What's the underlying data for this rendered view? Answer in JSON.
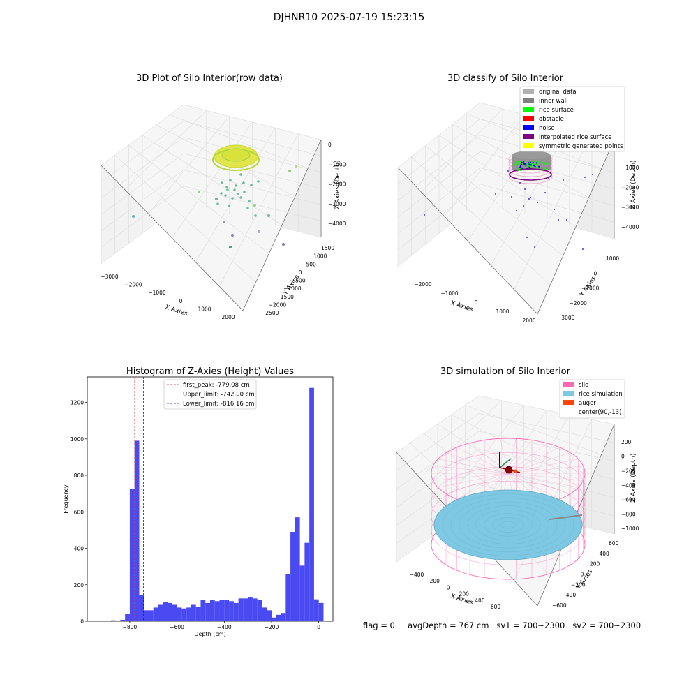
{
  "figure": {
    "suptitle": "DJHNR10 2025-07-19 15:23:15"
  },
  "status": {
    "flag": "flag = 0",
    "avg_depth": "avgDepth = 767 cm",
    "sv1": "sv1 = 700~2300",
    "sv2": "sv2 = 700~2300"
  },
  "colors": {
    "histogram_bar": "#4a4af2",
    "first_peak_line": "#dd2222",
    "limit_lines": "#1a1aa6",
    "classify_original": "#b0b0b0",
    "classify_inner_wall": "#808080",
    "classify_rice_surface": "#00ff00",
    "classify_obstacle": "#ff0000",
    "classify_noise": "#0000ff",
    "classify_interpolated": "#800080",
    "classify_symmetric": "#ffff00",
    "sim_silo": "#ff69b4",
    "sim_rice": "#7ec8e3",
    "sim_auger": "#ff4500"
  },
  "chart_data": [
    {
      "type": "scatter",
      "title": "3D Plot of Silo Interior(row data)",
      "xlabel": "X Axies",
      "ylabel": "Y Axies",
      "zlabel": "Z Axies (Depth)",
      "x_ticks": [
        "−3000",
        "−2000",
        "−1000",
        "0",
        "1000",
        "2000"
      ],
      "y_ticks": [
        "1500",
        "1000",
        "500",
        "0",
        "−500",
        "−1000",
        "−1500",
        "−2000",
        "−2500"
      ],
      "z_ticks": [
        "0",
        "−1000",
        "−2000",
        "−3000",
        "−4000"
      ],
      "xlim": [
        -3000,
        2000
      ],
      "ylim": [
        -2500,
        1500
      ],
      "zlim": [
        -4500,
        0
      ],
      "grid": true
    },
    {
      "type": "scatter",
      "title": "3D classify of Silo Interior",
      "xlabel": "X Axies",
      "ylabel": "Y Axies",
      "zlabel": "Z Axies (Depth)",
      "x_ticks": [
        "−2000",
        "−1000",
        "0",
        "1000",
        "2000"
      ],
      "y_ticks": [
        "1000",
        "0",
        "−1000",
        "−2000",
        "−3000"
      ],
      "z_ticks": [
        "−1000",
        "−2000",
        "−3000",
        "−4000"
      ],
      "legend_position": "top-right",
      "legend": [
        {
          "label": "original data",
          "color": "#b0b0b0"
        },
        {
          "label": "inner wall",
          "color": "#808080"
        },
        {
          "label": "rice surface",
          "color": "#00ff00"
        },
        {
          "label": "obstacle",
          "color": "#ff0000"
        },
        {
          "label": "noise",
          "color": "#0000ff"
        },
        {
          "label": "interpolated rice surface",
          "color": "#800080"
        },
        {
          "label": "symmetric generated points",
          "color": "#ffff00"
        }
      ],
      "grid": true
    },
    {
      "type": "bar",
      "title": "Histogram of Z-Axies (Height) Values",
      "xlabel": "Depth (cm)",
      "ylabel": "Frequency",
      "xlim": [
        -980,
        60
      ],
      "ylim": [
        0,
        1340
      ],
      "x_ticks": [
        "−800",
        "−600",
        "−400",
        "−200",
        "0"
      ],
      "y_ticks": [
        "0",
        "200",
        "400",
        "600",
        "800",
        "1000",
        "1200"
      ],
      "bin_width": 20,
      "bin_starts": [
        -880,
        -860,
        -840,
        -820,
        -800,
        -780,
        -760,
        -740,
        -720,
        -700,
        -680,
        -660,
        -640,
        -620,
        -600,
        -580,
        -560,
        -540,
        -520,
        -500,
        -480,
        -460,
        -440,
        -420,
        -400,
        -380,
        -360,
        -340,
        -320,
        -300,
        -280,
        -260,
        -240,
        -220,
        -200,
        -180,
        -160,
        -140,
        -120,
        -100,
        -80,
        -60,
        -40,
        -20,
        0
      ],
      "values": [
        5,
        0,
        8,
        40,
        725,
        990,
        145,
        60,
        60,
        75,
        90,
        105,
        100,
        90,
        75,
        70,
        75,
        90,
        80,
        115,
        100,
        115,
        110,
        115,
        115,
        110,
        100,
        125,
        125,
        130,
        125,
        115,
        75,
        60,
        20,
        35,
        45,
        260,
        490,
        570,
        305,
        430,
        1280,
        120,
        100
      ],
      "lines": [
        {
          "label": "first_peak: -779.08 cm",
          "x": -779.08,
          "color": "#dd2222"
        },
        {
          "label": "Upper_limit: -742.00 cm",
          "x": -742.0,
          "color": "#1a1aa6"
        },
        {
          "label": "Lower_limit: -816.16 cm",
          "x": -816.16,
          "color": "#1a1aa6"
        }
      ],
      "legend_position": "top-center",
      "grid": false
    },
    {
      "type": "scatter",
      "title": "3D simulation of Silo Interior",
      "xlabel": "X Axies",
      "ylabel": "Y Axies",
      "zlabel": "Z Axies (Depth)",
      "x_ticks": [
        "−400",
        "−200",
        "0",
        "200",
        "400",
        "600"
      ],
      "y_ticks": [
        "600",
        "400",
        "200",
        "0",
        "−200",
        "−400",
        "−600"
      ],
      "z_ticks": [
        "200",
        "0",
        "−200",
        "−400",
        "−600",
        "−800",
        "−1000"
      ],
      "legend_position": "top-right",
      "legend": [
        {
          "label": "silo",
          "color": "#ff69b4"
        },
        {
          "label": "rice simulation",
          "color": "#7ec8e3"
        },
        {
          "label": "auger",
          "color": "#ff4500"
        },
        {
          "label": "center(90,-13)",
          "color": "#ffffff"
        }
      ],
      "grid": true
    }
  ]
}
